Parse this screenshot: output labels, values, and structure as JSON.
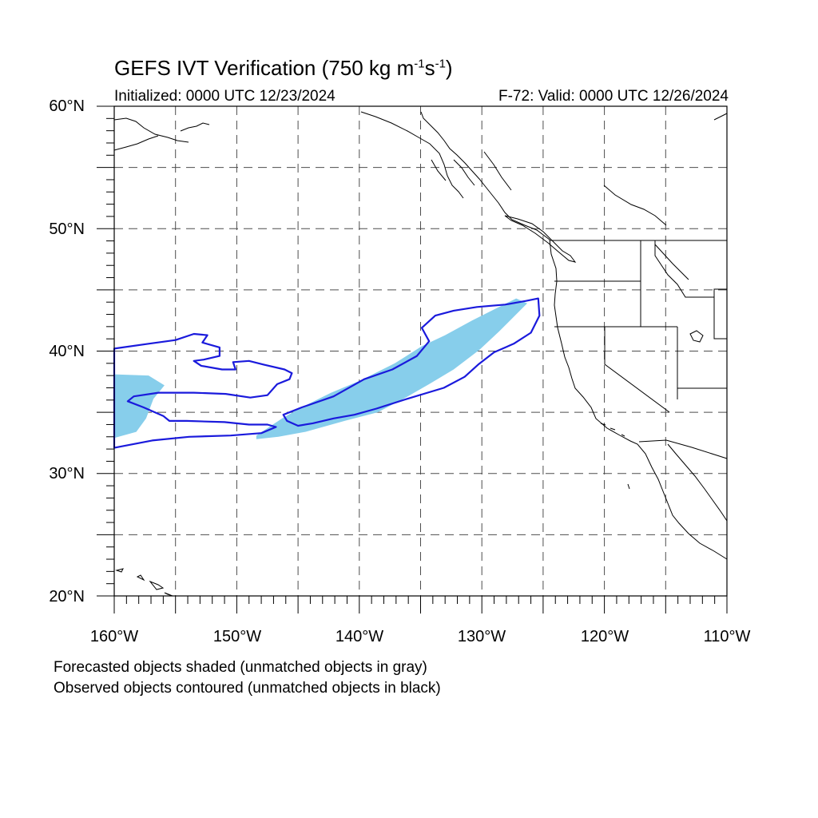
{
  "title": {
    "text": "GEFS IVT Verification (750 kg m",
    "exp1": "-1",
    "mid": "s",
    "exp2": "-1",
    "end": ")"
  },
  "initialized": "Initialized: 0000 UTC 12/23/2024",
  "valid": "F-72: Valid: 0000 UTC 12/26/2024",
  "lat_labels": [
    "60°N",
    "50°N",
    "40°N",
    "30°N",
    "20°N"
  ],
  "lon_labels": [
    "160°W",
    "150°W",
    "140°W",
    "130°W",
    "120°W",
    "110°W"
  ],
  "notes": [
    "Forecasted objects shaded (unmatched objects in gray)",
    "Observed objects contoured (unmatched objects in black)"
  ],
  "colors": {
    "forecast_fill": "#87ceeb",
    "observed_contour": "#1a1adc",
    "coastline": "#000000",
    "grid": "#4d4d4d"
  },
  "map_extent": {
    "lon_min": -160,
    "lon_max": -110,
    "lat_min": 20,
    "lat_max": 60
  },
  "forecast_objects": [
    {
      "name": "forecast-object-west",
      "points": [
        [
          -160,
          38.1
        ],
        [
          -157.2,
          38
        ],
        [
          -155.9,
          37.2
        ],
        [
          -156.8,
          36.1
        ],
        [
          -157.4,
          34.5
        ],
        [
          -158.2,
          33.4
        ],
        [
          -160,
          32.9
        ]
      ]
    },
    {
      "name": "forecast-object-main",
      "points": [
        [
          -148.4,
          33.1
        ],
        [
          -146.3,
          34.5
        ],
        [
          -144.9,
          35.3
        ],
        [
          -142.3,
          36.6
        ],
        [
          -139.9,
          37.6
        ],
        [
          -137.1,
          39
        ],
        [
          -134.9,
          40.4
        ],
        [
          -133,
          41.3
        ],
        [
          -130.8,
          42.5
        ],
        [
          -128.6,
          43.6
        ],
        [
          -127.2,
          44.3
        ],
        [
          -126.3,
          43.9
        ],
        [
          -127.1,
          43.1
        ],
        [
          -128.6,
          41.6
        ],
        [
          -130.2,
          40.1
        ],
        [
          -132.3,
          38.5
        ],
        [
          -134.3,
          37.3
        ],
        [
          -136.4,
          36.1
        ],
        [
          -138.5,
          35
        ],
        [
          -141.2,
          34.3
        ],
        [
          -144.4,
          33.4
        ],
        [
          -146.6,
          33
        ],
        [
          -148.4,
          32.8
        ]
      ]
    }
  ],
  "observed_objects": [
    {
      "name": "observed-contour-west",
      "points": [
        [
          -160,
          40.2
        ],
        [
          -157.2,
          40.6
        ],
        [
          -155,
          40.9
        ],
        [
          -153.5,
          41.4
        ],
        [
          -152.4,
          41.3
        ],
        [
          -152.8,
          40.7
        ],
        [
          -151.4,
          40.3
        ],
        [
          -151.4,
          39.6
        ],
        [
          -152.7,
          39.3
        ],
        [
          -153.5,
          39.2
        ],
        [
          -152.9,
          38.8
        ],
        [
          -151.2,
          38.5
        ],
        [
          -150.1,
          38.5
        ],
        [
          -150.3,
          39.1
        ],
        [
          -149,
          39.2
        ],
        [
          -147.8,
          38.9
        ],
        [
          -146.1,
          38.5
        ],
        [
          -145.5,
          38.2
        ],
        [
          -145.7,
          37.7
        ],
        [
          -146.7,
          37.3
        ],
        [
          -147.5,
          36.4
        ],
        [
          -148.9,
          36.2
        ],
        [
          -150.9,
          36.5
        ],
        [
          -153.5,
          36.6
        ],
        [
          -156.4,
          36.6
        ],
        [
          -158.4,
          36.3
        ],
        [
          -158.9,
          35.9
        ],
        [
          -157.6,
          35.4
        ],
        [
          -156,
          34.7
        ],
        [
          -155.5,
          34.3
        ],
        [
          -154.1,
          34.3
        ],
        [
          -151,
          34.2
        ],
        [
          -149,
          34
        ],
        [
          -147.5,
          34
        ],
        [
          -146.8,
          33.8
        ],
        [
          -148,
          33.3
        ],
        [
          -150.5,
          33.1
        ],
        [
          -153.9,
          33
        ],
        [
          -156.9,
          32.7
        ],
        [
          -160,
          32.1
        ]
      ]
    },
    {
      "name": "observed-contour-main",
      "points": [
        [
          -146.2,
          34.8
        ],
        [
          -144.7,
          35.4
        ],
        [
          -142.1,
          36.3
        ],
        [
          -139.6,
          37.7
        ],
        [
          -137.3,
          38.5
        ],
        [
          -135.3,
          39.6
        ],
        [
          -134.3,
          40.8
        ],
        [
          -134.9,
          41.9
        ],
        [
          -133.8,
          42.9
        ],
        [
          -132.3,
          43.3
        ],
        [
          -130.4,
          43.6
        ],
        [
          -128.1,
          43.8
        ],
        [
          -126.4,
          44.1
        ],
        [
          -125.4,
          44.3
        ],
        [
          -125.3,
          42.9
        ],
        [
          -126,
          41.5
        ],
        [
          -127.4,
          40.6
        ],
        [
          -129,
          39.9
        ],
        [
          -130.3,
          38.9
        ],
        [
          -131.4,
          37.9
        ],
        [
          -133.1,
          37
        ],
        [
          -136.1,
          36.1
        ],
        [
          -138.6,
          35.3
        ],
        [
          -140.4,
          34.8
        ],
        [
          -142.1,
          34.5
        ],
        [
          -143.8,
          34.1
        ],
        [
          -145,
          33.9
        ],
        [
          -145.9,
          34.3
        ]
      ]
    }
  ]
}
